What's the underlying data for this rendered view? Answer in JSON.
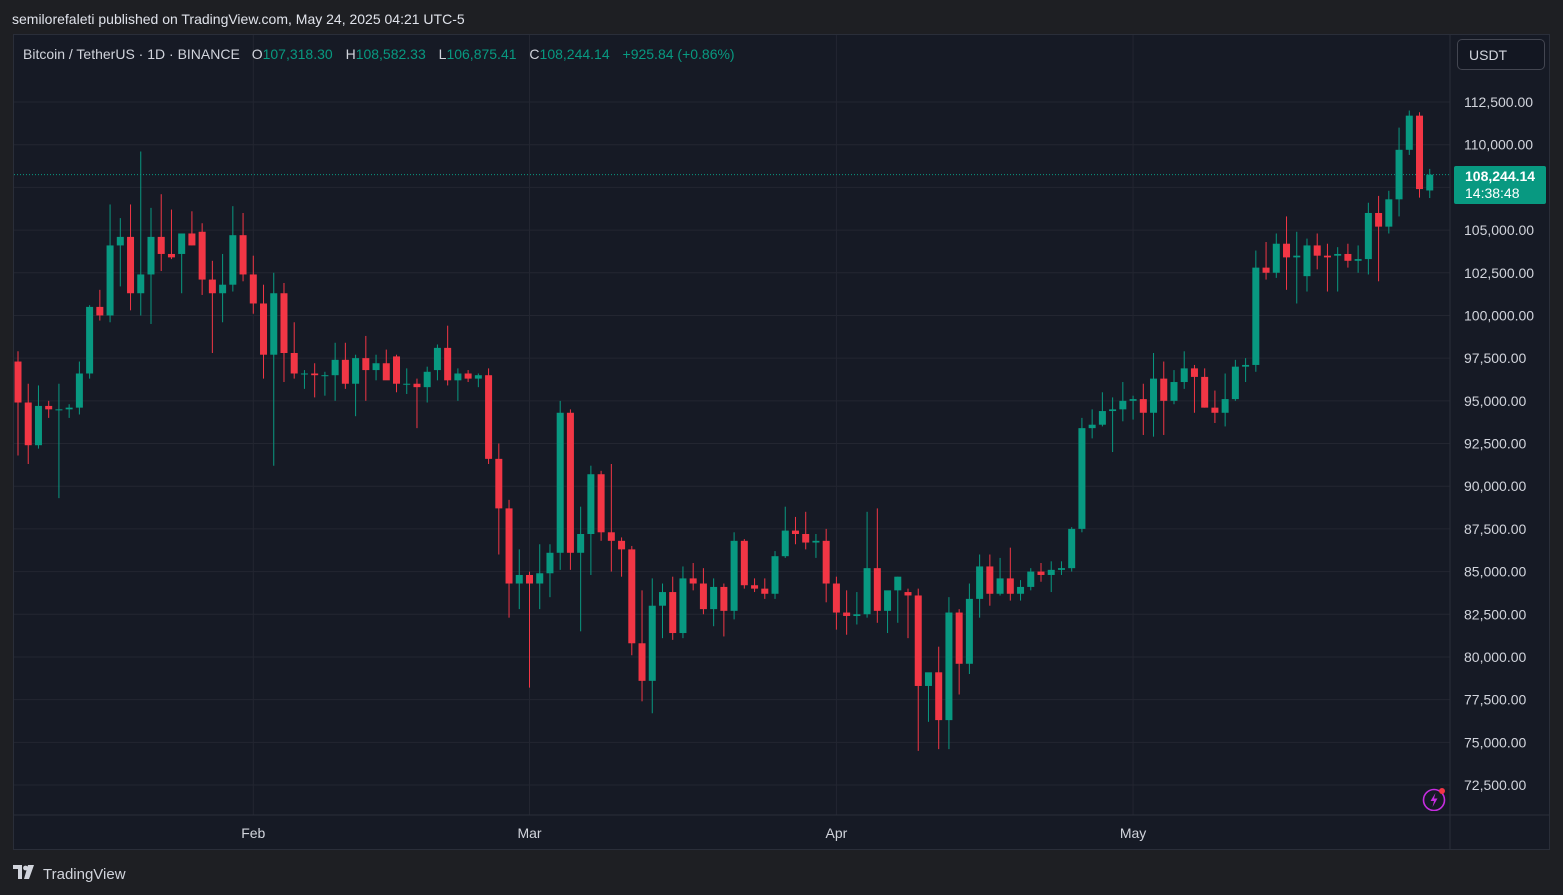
{
  "header": {
    "published_text": "semilorefaleti published on TradingView.com, May 24, 2025 04:21 UTC-5"
  },
  "legend": {
    "symbol": "Bitcoin / TetherUS · 1D · BINANCE",
    "open_label": "O",
    "open": "107,318.30",
    "high_label": "H",
    "high": "108,582.33",
    "low_label": "L",
    "low": "106,875.41",
    "close_label": "C",
    "close": "108,244.14",
    "change": "+925.84 (+0.86%)"
  },
  "currency_button": {
    "label": "USDT"
  },
  "price_tag": {
    "price": "108,244.14",
    "countdown": "14:38:48"
  },
  "footer": {
    "brand": "TradingView"
  },
  "colors": {
    "up": "#089981",
    "down": "#f23645",
    "background": "#161a25",
    "grid": "#232631",
    "text": "#d1d4dc",
    "accent_bolt": "#c62de0"
  },
  "icons": {
    "flash": "lightning-bolt-icon",
    "logo": "tradingview-logo-icon"
  },
  "chart_data": {
    "type": "candlestick",
    "interval": "1D",
    "ylim": [
      71500,
      114000
    ],
    "ytick_labels": [
      "72,500.00",
      "75,000.00",
      "77,500.00",
      "80,000.00",
      "82,500.00",
      "85,000.00",
      "87,500.00",
      "90,000.00",
      "92,500.00",
      "95,000.00",
      "97,500.00",
      "100,000.00",
      "102,500.00",
      "105,000.00",
      "107,500.00",
      "110,000.00",
      "112,500.00"
    ],
    "yticks": [
      72500,
      75000,
      77500,
      80000,
      82500,
      85000,
      87500,
      90000,
      92500,
      95000,
      97500,
      100000,
      102500,
      105000,
      107500,
      110000,
      112500
    ],
    "x_tick_labels": [
      {
        "label": "Feb",
        "index": 23
      },
      {
        "label": "Mar",
        "index": 50
      },
      {
        "label": "Apr",
        "index": 80
      },
      {
        "label": "May",
        "index": 109
      }
    ],
    "grid": true,
    "last_price_line": 108244.14,
    "ohlc": [
      [
        97300,
        97900,
        91800,
        94900
      ],
      [
        94900,
        96000,
        91300,
        92400
      ],
      [
        92400,
        95900,
        92200,
        94700
      ],
      [
        94700,
        95000,
        94000,
        94500
      ],
      [
        94500,
        96000,
        89300,
        94500
      ],
      [
        94500,
        94800,
        94000,
        94600
      ],
      [
        94600,
        97300,
        94200,
        96600
      ],
      [
        96600,
        100600,
        96300,
        100500
      ],
      [
        100500,
        101500,
        99700,
        100000
      ],
      [
        100000,
        106500,
        99600,
        104100
      ],
      [
        104100,
        105700,
        101700,
        104600
      ],
      [
        104600,
        106500,
        100300,
        101300
      ],
      [
        101300,
        109600,
        100000,
        102400
      ],
      [
        102400,
        106300,
        99500,
        104600
      ],
      [
        104600,
        107100,
        102600,
        103600
      ],
      [
        103600,
        106200,
        103300,
        103400
      ],
      [
        103600,
        104800,
        101300,
        104800
      ],
      [
        104800,
        106100,
        104100,
        104100
      ],
      [
        104900,
        105400,
        101200,
        102100
      ],
      [
        102100,
        103200,
        97800,
        101300
      ],
      [
        101300,
        103600,
        99600,
        101800
      ],
      [
        101800,
        106400,
        101400,
        104700
      ],
      [
        104700,
        106000,
        102000,
        102400
      ],
      [
        102400,
        103500,
        100100,
        100700
      ],
      [
        100700,
        101800,
        96300,
        97700
      ],
      [
        97700,
        102500,
        91200,
        101300
      ],
      [
        101300,
        101900,
        96100,
        97800
      ],
      [
        97800,
        99600,
        96300,
        96600
      ],
      [
        96600,
        96800,
        95700,
        96600
      ],
      [
        96600,
        97200,
        95200,
        96500
      ],
      [
        96500,
        96700,
        95300,
        96500
      ],
      [
        96500,
        98400,
        95000,
        97400
      ],
      [
        97400,
        98400,
        95700,
        96000
      ],
      [
        96000,
        97700,
        94100,
        97500
      ],
      [
        97500,
        98800,
        95000,
        96800
      ],
      [
        96800,
        97700,
        96200,
        97200
      ],
      [
        97200,
        98000,
        96300,
        96200
      ],
      [
        97600,
        97700,
        95500,
        96000
      ],
      [
        96000,
        96900,
        95400,
        96000
      ],
      [
        96000,
        96300,
        93400,
        95800
      ],
      [
        95800,
        97000,
        94900,
        96700
      ],
      [
        96800,
        98300,
        96200,
        98100
      ],
      [
        98100,
        99400,
        95900,
        96200
      ],
      [
        96200,
        96900,
        95000,
        96600
      ],
      [
        96600,
        96800,
        96100,
        96300
      ],
      [
        96300,
        96600,
        95800,
        96500
      ],
      [
        96500,
        96900,
        91300,
        91600
      ],
      [
        91600,
        92500,
        86000,
        88700
      ],
      [
        88700,
        89200,
        82300,
        84300
      ],
      [
        84300,
        86300,
        82800,
        84800
      ],
      [
        84800,
        85000,
        78200,
        84300
      ],
      [
        84300,
        86600,
        82800,
        84900
      ],
      [
        84900,
        86600,
        83500,
        86100
      ],
      [
        86100,
        95000,
        85100,
        94300
      ],
      [
        94300,
        94500,
        85100,
        86100
      ],
      [
        86100,
        88800,
        81500,
        87200
      ],
      [
        87200,
        91200,
        84800,
        90700
      ],
      [
        90700,
        90900,
        86800,
        87300
      ],
      [
        87300,
        91300,
        85000,
        86800
      ],
      [
        86800,
        87000,
        84700,
        86300
      ],
      [
        86300,
        86500,
        80100,
        80800
      ],
      [
        80800,
        83900,
        77400,
        78600
      ],
      [
        78600,
        84600,
        76700,
        83000
      ],
      [
        83000,
        84300,
        81100,
        83800
      ],
      [
        83800,
        84700,
        81000,
        81400
      ],
      [
        81400,
        85300,
        81100,
        84600
      ],
      [
        84600,
        85500,
        83900,
        84300
      ],
      [
        84300,
        85200,
        82500,
        82800
      ],
      [
        82800,
        84600,
        81800,
        84100
      ],
      [
        84100,
        84300,
        81200,
        82700
      ],
      [
        82700,
        87300,
        82200,
        86800
      ],
      [
        86800,
        86900,
        84000,
        84200
      ],
      [
        84200,
        84600,
        83800,
        84000
      ],
      [
        84000,
        84600,
        83400,
        83700
      ],
      [
        83700,
        86200,
        83400,
        85900
      ],
      [
        85900,
        88800,
        85800,
        87400
      ],
      [
        87400,
        88200,
        86600,
        87200
      ],
      [
        87200,
        88500,
        86300,
        86700
      ],
      [
        86700,
        87200,
        85800,
        86800
      ],
      [
        86800,
        87500,
        83200,
        84300
      ],
      [
        84300,
        84700,
        81600,
        82600
      ],
      [
        82600,
        83900,
        81300,
        82400
      ],
      [
        82400,
        83800,
        81900,
        82500
      ],
      [
        82500,
        88500,
        82300,
        85200
      ],
      [
        85200,
        88700,
        82000,
        82700
      ],
      [
        82700,
        83600,
        81400,
        83900
      ],
      [
        83900,
        84700,
        82000,
        84700
      ],
      [
        83800,
        84000,
        81100,
        83600
      ],
      [
        83600,
        84000,
        74500,
        78300
      ],
      [
        78300,
        79000,
        76200,
        79100
      ],
      [
        79100,
        80600,
        74600,
        76300
      ],
      [
        76300,
        83500,
        74600,
        82600
      ],
      [
        82600,
        82800,
        77800,
        79600
      ],
      [
        79600,
        84300,
        79000,
        83400
      ],
      [
        83400,
        86000,
        82300,
        85300
      ],
      [
        85300,
        86000,
        83000,
        83700
      ],
      [
        83700,
        85800,
        83600,
        84600
      ],
      [
        84600,
        86400,
        83300,
        83700
      ],
      [
        83700,
        84500,
        83300,
        84100
      ],
      [
        84100,
        85200,
        83900,
        85000
      ],
      [
        85000,
        85500,
        84400,
        84800
      ],
      [
        84800,
        85600,
        83800,
        85100
      ],
      [
        85100,
        85600,
        84800,
        85200
      ],
      [
        85200,
        87600,
        85000,
        87500
      ],
      [
        87500,
        94000,
        87300,
        93400
      ],
      [
        93400,
        94500,
        92800,
        93600
      ],
      [
        93600,
        95500,
        93500,
        94400
      ],
      [
        94400,
        95200,
        92000,
        94500
      ],
      [
        94500,
        96100,
        93800,
        95000
      ],
      [
        95000,
        95300,
        93900,
        95100
      ],
      [
        95100,
        96000,
        93000,
        94300
      ],
      [
        94300,
        97800,
        92900,
        96300
      ],
      [
        96300,
        97300,
        93000,
        95000
      ],
      [
        95000,
        96800,
        94800,
        96100
      ],
      [
        96100,
        97900,
        95700,
        96900
      ],
      [
        96900,
        97100,
        94300,
        96400
      ],
      [
        96400,
        96900,
        94600,
        94600
      ],
      [
        94600,
        95600,
        93700,
        94300
      ],
      [
        94300,
        96600,
        93500,
        95100
      ],
      [
        95100,
        97400,
        95000,
        97000
      ],
      [
        97000,
        97500,
        96100,
        97100
      ],
      [
        97100,
        103800,
        96700,
        102800
      ],
      [
        102800,
        104300,
        102100,
        102500
      ],
      [
        102500,
        104800,
        102200,
        104200
      ],
      [
        104200,
        105800,
        101500,
        103400
      ],
      [
        103400,
        104900,
        100700,
        103500
      ],
      [
        102300,
        104500,
        101400,
        104100
      ],
      [
        104100,
        104800,
        102700,
        103500
      ],
      [
        103500,
        104200,
        101400,
        103400
      ],
      [
        103500,
        104000,
        101400,
        103600
      ],
      [
        103600,
        104200,
        102800,
        103200
      ],
      [
        103200,
        104100,
        102500,
        103300
      ],
      [
        103300,
        106600,
        102400,
        106000
      ],
      [
        106000,
        107000,
        102000,
        105200
      ],
      [
        105200,
        107300,
        104800,
        106800
      ],
      [
        106800,
        111000,
        105800,
        109700
      ],
      [
        109700,
        112000,
        109400,
        111700
      ],
      [
        111700,
        111900,
        106900,
        107400
      ],
      [
        107318.3,
        108582.33,
        106875.41,
        108244.14
      ]
    ]
  }
}
